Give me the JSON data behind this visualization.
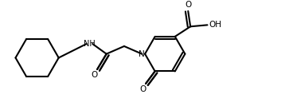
{
  "bg_color": "#ffffff",
  "line_color": "#000000",
  "lw": 1.5,
  "figsize": [
    3.68,
    1.38
  ],
  "dpi": 100,
  "xlim": [
    0,
    3.68
  ],
  "ylim": [
    0,
    1.38
  ]
}
